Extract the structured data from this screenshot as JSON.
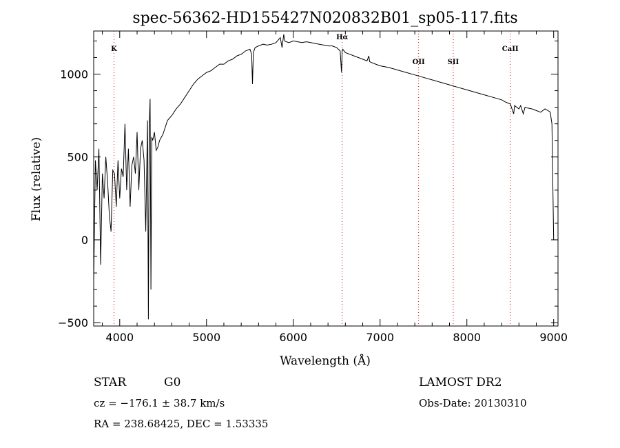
{
  "chart_data": {
    "type": "line",
    "title": "spec-56362-HD155427N020832B01_sp05-117.fits",
    "xlabel": "Wavelength (Å)",
    "ylabel": "Flux (relative)",
    "xlim": [
      3700,
      9050
    ],
    "ylim": [
      -520,
      1260
    ],
    "x_ticks": [
      4000,
      5000,
      6000,
      7000,
      8000,
      9000
    ],
    "x_tick_labels": [
      "4000",
      "5000",
      "6000",
      "7000",
      "8000",
      "9000"
    ],
    "y_ticks": [
      -500,
      0,
      500,
      1000
    ],
    "y_tick_labels": [
      "−500",
      "0",
      "500",
      "1000"
    ],
    "grid": false,
    "spectral_lines": [
      {
        "label": "K",
        "wavelength": 3934,
        "label_flux": 1140
      },
      {
        "label": "Hα",
        "wavelength": 6563,
        "label_flux": 1210
      },
      {
        "label": "OII",
        "wavelength": 7444,
        "label_flux": 1060
      },
      {
        "label": "SII",
        "wavelength": 7843,
        "label_flux": 1060
      },
      {
        "label": "CaII",
        "wavelength": 8500,
        "label_flux": 1140
      }
    ],
    "series": [
      {
        "x": [
          3700,
          3720,
          3740,
          3760,
          3780,
          3800,
          3820,
          3840,
          3860,
          3880,
          3900,
          3920,
          3940,
          3960,
          3980,
          4000,
          4020,
          4040,
          4060,
          4080,
          4100,
          4120,
          4140,
          4160,
          4180,
          4200,
          4220,
          4240,
          4260,
          4280,
          4300,
          4320,
          4330,
          4340,
          4350,
          4360,
          4370,
          4380,
          4400,
          4420,
          4440,
          4460,
          4480,
          4500,
          4550,
          4600,
          4650,
          4700,
          4750,
          4800,
          4850,
          4900,
          4950,
          5000,
          5050,
          5100,
          5150,
          5200,
          5250,
          5300,
          5350,
          5400,
          5450,
          5500,
          5520,
          5530,
          5540,
          5560,
          5600,
          5650,
          5700,
          5750,
          5800,
          5850,
          5870,
          5890,
          5900,
          5920,
          5950,
          6000,
          6050,
          6100,
          6150,
          6200,
          6250,
          6300,
          6350,
          6400,
          6450,
          6500,
          6540,
          6555,
          6563,
          6570,
          6600,
          6650,
          6700,
          6750,
          6800,
          6850,
          6870,
          6880,
          6900,
          6950,
          7000,
          7100,
          7200,
          7300,
          7400,
          7500,
          7600,
          7700,
          7800,
          7900,
          8000,
          8100,
          8200,
          8300,
          8400,
          8450,
          8500,
          8540,
          8550,
          8600,
          8620,
          8650,
          8670,
          8700,
          8750,
          8800,
          8850,
          8900,
          8950,
          8960,
          8980,
          9000
        ],
        "y": [
          -250,
          480,
          300,
          550,
          -150,
          400,
          250,
          500,
          350,
          150,
          50,
          420,
          400,
          200,
          480,
          250,
          430,
          380,
          700,
          300,
          550,
          200,
          450,
          500,
          400,
          650,
          300,
          550,
          600,
          480,
          50,
          720,
          -480,
          680,
          850,
          -300,
          620,
          600,
          650,
          540,
          560,
          600,
          620,
          640,
          720,
          750,
          790,
          820,
          860,
          900,
          940,
          970,
          990,
          1010,
          1020,
          1040,
          1060,
          1060,
          1080,
          1090,
          1110,
          1120,
          1140,
          1150,
          1120,
          940,
          1130,
          1160,
          1170,
          1180,
          1175,
          1180,
          1190,
          1220,
          1160,
          1240,
          1200,
          1195,
          1190,
          1200,
          1195,
          1190,
          1195,
          1190,
          1185,
          1180,
          1175,
          1170,
          1170,
          1160,
          1140,
          1010,
          1140,
          1150,
          1130,
          1120,
          1110,
          1100,
          1090,
          1080,
          1110,
          1075,
          1070,
          1060,
          1050,
          1040,
          1025,
          1010,
          995,
          980,
          965,
          950,
          935,
          920,
          905,
          890,
          875,
          860,
          845,
          830,
          820,
          760,
          810,
          790,
          810,
          760,
          800,
          795,
          790,
          780,
          770,
          790,
          775,
          770,
          700,
          0
        ]
      }
    ]
  },
  "info": {
    "object_class": "STAR",
    "subclass": "G0",
    "survey": "LAMOST DR2",
    "redshift_text": "cz = −176.1 ± 38.7 km/s",
    "obs_date": "Obs-Date: 20130310",
    "coords": "RA = 238.68425, DEC =   1.53335"
  }
}
